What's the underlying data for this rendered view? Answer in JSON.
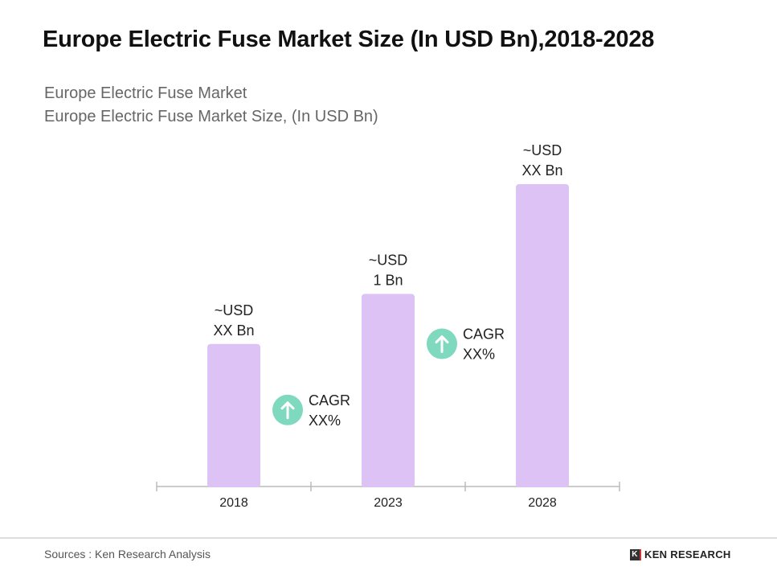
{
  "title": "Europe Electric Fuse Market Size (In USD Bn),2018-2028",
  "subtitle1": "Europe Electric Fuse Market",
  "subtitle2": "Europe Electric Fuse Market Size, (In USD Bn)",
  "chart_data": {
    "type": "bar",
    "categories": [
      "2018",
      "2023",
      "2028"
    ],
    "values": [
      0.74,
      1.0,
      1.57
    ],
    "data_labels": [
      [
        "~USD",
        "XX Bn"
      ],
      [
        "~USD",
        "1 Bn"
      ],
      [
        "~USD",
        "XX Bn"
      ]
    ],
    "annotations": [
      {
        "between": [
          "2018",
          "2023"
        ],
        "lines": [
          "CAGR",
          "XX%"
        ],
        "icon": "arrow-up-circle-icon"
      },
      {
        "between": [
          "2023",
          "2028"
        ],
        "lines": [
          "CAGR",
          "XX%"
        ],
        "icon": "arrow-up-circle-icon"
      }
    ],
    "ylim": [
      0,
      1.6
    ],
    "grid": false,
    "colors": {
      "bar": "#dcc2f5",
      "cagr_circle": "#7fd9bf",
      "axis": "#bbbbbb"
    }
  },
  "footer": {
    "source": "Sources : Ken Research Analysis",
    "logo": "KEN RESEARCH"
  }
}
